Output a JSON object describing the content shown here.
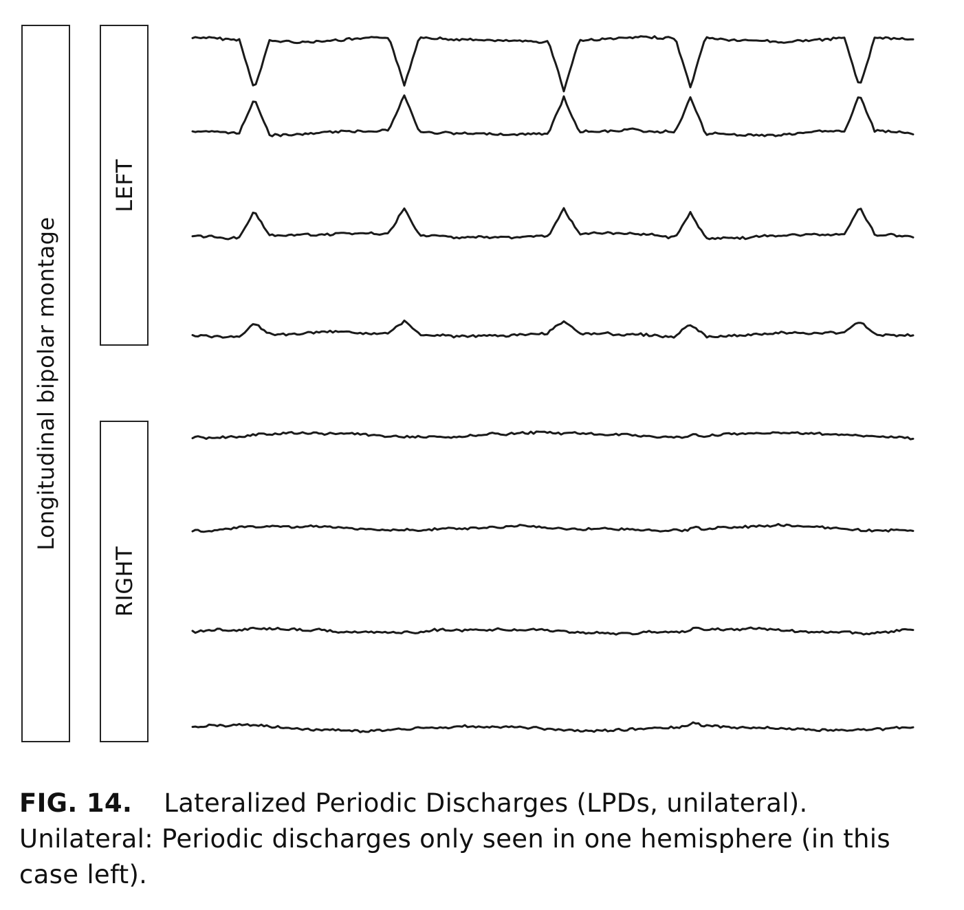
{
  "figure": {
    "montage_label": "Longitudinal bipolar montage",
    "left_label": "LEFT",
    "right_label": "RIGHT",
    "caption": {
      "fig_label": "FIG. 14.",
      "text": "Lateralized Periodic Discharges (LPDs, unilateral). Unilateral: Periodic discharges only seen in one hemisphere (in this case left)."
    }
  }
}
